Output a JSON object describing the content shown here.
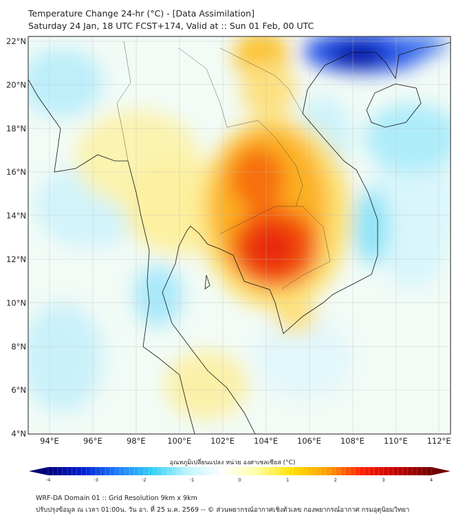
{
  "header": {
    "title": "Temperature Change 24-hr (°C) - [Data Assimilation]",
    "subtitle": "Saturday 24 Jan, 18 UTC FCST+174, Valid at :: Sun 01 Feb, 00 UTC"
  },
  "map": {
    "lat_labels": [
      "22°N",
      "20°N",
      "18°N",
      "16°N",
      "14°N",
      "12°N",
      "10°N",
      "8°N",
      "6°N",
      "4°N"
    ],
    "lon_labels": [
      "94°E",
      "96°E",
      "98°E",
      "100°E",
      "102°E",
      "104°E",
      "106°E",
      "108°E",
      "110°E",
      "112°E"
    ],
    "extent": {
      "lon": [
        93,
        112.5
      ],
      "lat": [
        4,
        22.2
      ]
    }
  },
  "colorbar": {
    "title": "อุณหภูมิเปลี่ยนแปลง หน่วย องศาเซลเซียส (°C)",
    "ticks": [
      "-4",
      "-3",
      "-2",
      "-1",
      "0",
      "1",
      "2",
      "3",
      "4"
    ],
    "colors": [
      "#00007a",
      "#0020d0",
      "#1e7fff",
      "#35d0f5",
      "#bff4fb",
      "#ffffff",
      "#ffffa0",
      "#ffe000",
      "#ffa000",
      "#ff2000",
      "#c00000",
      "#700000"
    ]
  },
  "footer": {
    "line1": "WRF-DA Domain 01 :: Grid Resolution 9km x 9km",
    "line2": "ปรับปรุงข้อมูล ณ เวลา 01:00น. วัน อา. ที่ 25 ม.ค. 2569 -- © ส่วนพยากรณ์อากาศเชิงตัวเลข กองพยากรณ์อากาศ กรมอุตุนิยมวิทยา"
  }
}
